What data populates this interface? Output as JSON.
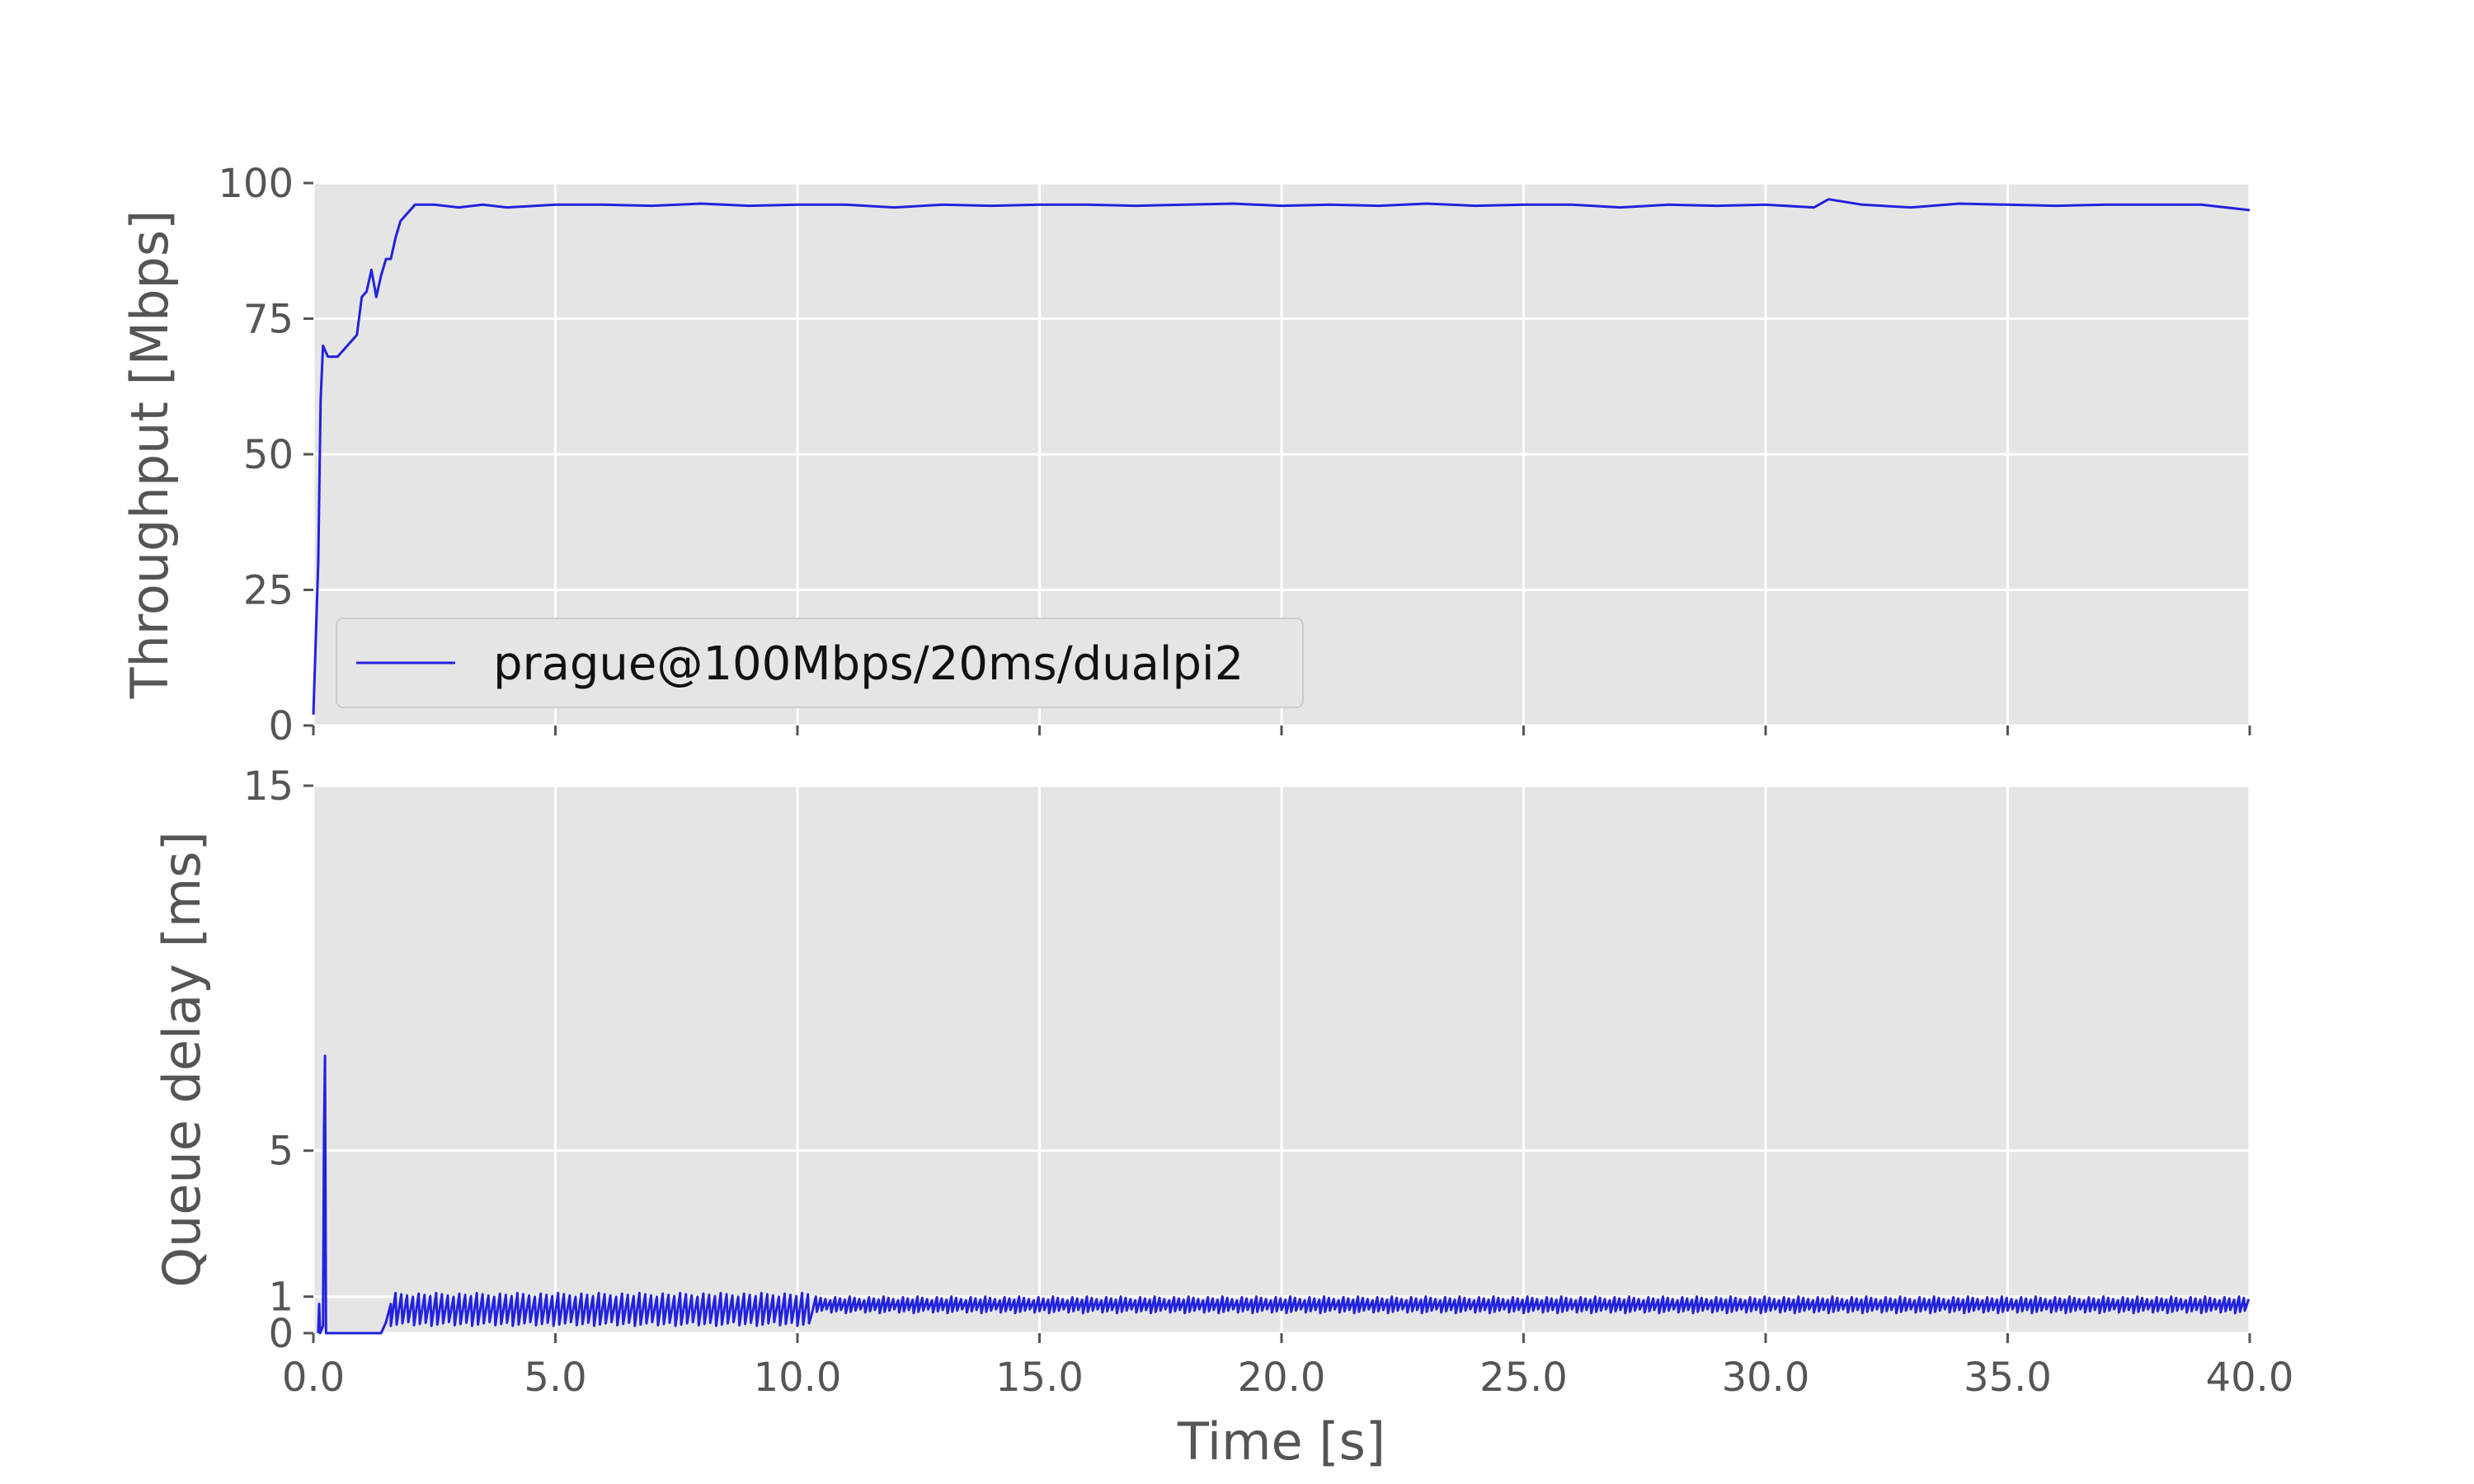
{
  "chart_data": [
    {
      "type": "line",
      "ylabel": "Throughput [Mbps]",
      "xlabel": "",
      "xlim": [
        0,
        40
      ],
      "ylim": [
        0,
        100
      ],
      "yticks": [
        0,
        25,
        50,
        75,
        100
      ],
      "yticklabels": [
        "0",
        "25",
        "50",
        "75",
        "100"
      ],
      "xticks": [
        0,
        5,
        10,
        15,
        20,
        25,
        30,
        35,
        40
      ],
      "xticklabels": [],
      "grid": true,
      "legend_position": "lower-left",
      "series": [
        {
          "name": "prague@100Mbps/20ms/dualpi2",
          "color": "#2222dd",
          "x": [
            0.0,
            0.1,
            0.15,
            0.2,
            0.3,
            0.5,
            0.7,
            0.9,
            1.0,
            1.1,
            1.2,
            1.3,
            1.4,
            1.5,
            1.6,
            1.7,
            1.8,
            1.9,
            2.0,
            2.1,
            2.2,
            2.5,
            3.0,
            3.5,
            4.0,
            5.0,
            6.0,
            7.0,
            8.0,
            9.0,
            10.0,
            11.0,
            12.0,
            13.0,
            14.0,
            15.0,
            16.0,
            17.0,
            18.0,
            19.0,
            20.0,
            21.0,
            22.0,
            23.0,
            24.0,
            25.0,
            26.0,
            27.0,
            28.0,
            29.0,
            30.0,
            31.0,
            31.3,
            32.0,
            33.0,
            34.0,
            35.0,
            36.0,
            37.0,
            38.0,
            39.0,
            40.0
          ],
          "y": [
            2,
            30,
            60,
            70,
            68,
            68,
            70,
            72,
            79,
            80,
            84,
            79,
            83,
            86,
            86,
            90,
            93,
            94,
            95,
            96,
            96,
            96,
            95.5,
            96,
            95.5,
            96,
            96,
            95.8,
            96.2,
            95.8,
            96,
            96,
            95.5,
            96,
            95.8,
            96,
            96,
            95.8,
            96,
            96.2,
            95.8,
            96,
            95.8,
            96.2,
            95.8,
            96,
            96,
            95.5,
            96,
            95.8,
            96,
            95.5,
            97,
            96,
            95.5,
            96.2,
            96,
            95.8,
            96,
            96,
            96,
            95
          ]
        }
      ]
    },
    {
      "type": "line",
      "ylabel": "Queue delay [ms]",
      "xlabel": "Time [s]",
      "xlim": [
        0,
        40
      ],
      "ylim": [
        0,
        15
      ],
      "yticks": [
        0,
        1,
        5,
        15
      ],
      "yticklabels": [
        "0",
        "1",
        "5",
        "15"
      ],
      "xticks": [
        0,
        5,
        10,
        15,
        20,
        25,
        30,
        35,
        40
      ],
      "xticklabels": [
        "0.0",
        "5.0",
        "10.0",
        "15.0",
        "20.0",
        "25.0",
        "30.0",
        "35.0",
        "40.0"
      ],
      "grid": true,
      "series": [
        {
          "name": "",
          "color": "#2222dd",
          "x": [
            0.1,
            0.12,
            0.14,
            0.2,
            0.22,
            0.24,
            0.26,
            0.28,
            1.4,
            1.5,
            1.6,
            1.7,
            1.8,
            2.0,
            2.5,
            3.0,
            4.0,
            5.0,
            6.0,
            7.0,
            8.0,
            9.0,
            10.0,
            10.1,
            10.2,
            10.3,
            10.4,
            10.5,
            15.0,
            20.0,
            25.0,
            30.0,
            35.0,
            40.0
          ],
          "y": [
            0,
            0.8,
            0,
            0.2,
            5.5,
            7.6,
            0,
            0,
            0,
            0.3,
            0.8,
            1.1,
            0.5,
            0.9,
            0.7,
            0.8,
            0.7,
            0.8,
            0.8,
            0.7,
            0.8,
            0.7,
            0.8,
            0.3,
            0.9,
            1.1,
            0.8,
            0.9,
            0.8,
            0.8,
            0.8,
            0.8,
            0.8,
            0.8
          ],
          "oscillation": [
            {
              "x_start": 1.6,
              "x_end": 10.3,
              "period": 0.12,
              "min": 0.2,
              "max": 1.1
            },
            {
              "x_start": 10.3,
              "x_end": 40.0,
              "period": 0.1,
              "min": 0.55,
              "max": 1.0
            }
          ]
        }
      ]
    }
  ]
}
